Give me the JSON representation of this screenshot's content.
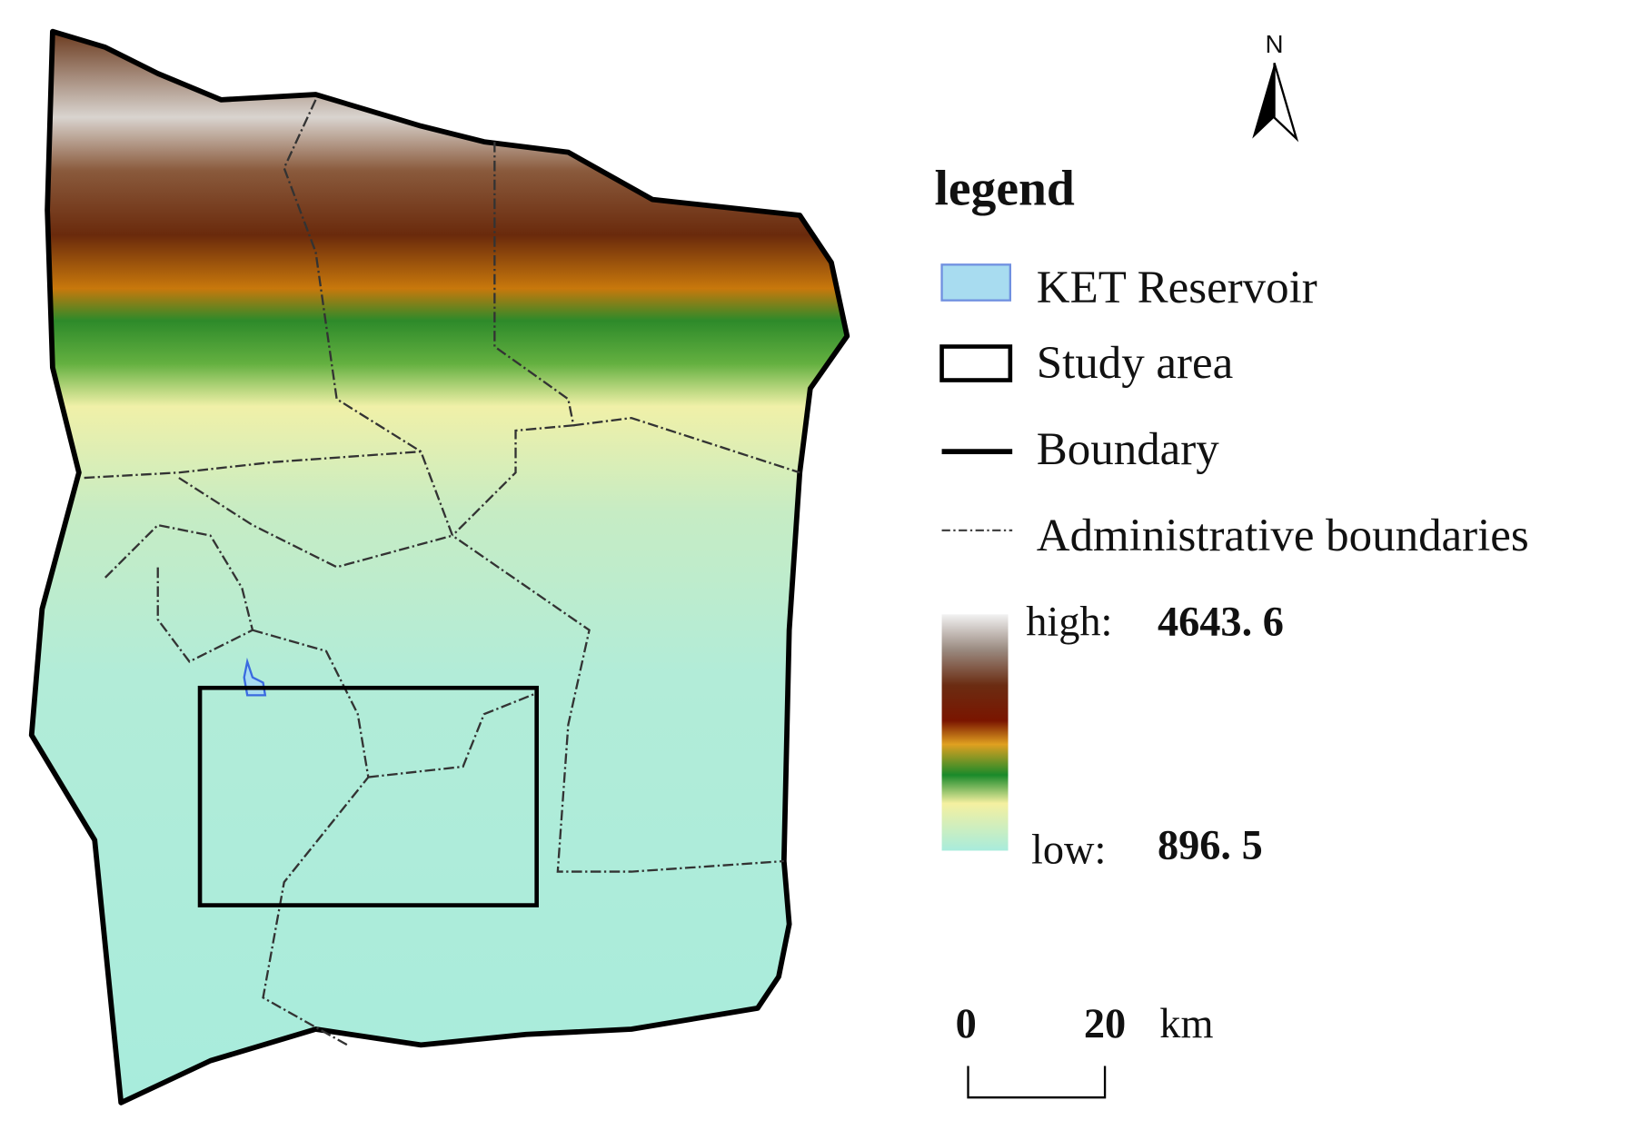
{
  "north": "N",
  "legend": {
    "title": "legend",
    "items": [
      "KET Reservoir",
      "Study area",
      "Boundary",
      "Administrative boundaries"
    ],
    "high_label": "high:",
    "high_value": "4643. 6",
    "low_label": "low:",
    "low_value": "896. 5"
  },
  "scale_bar": {
    "start": "0",
    "end": "20",
    "unit": "km"
  }
}
